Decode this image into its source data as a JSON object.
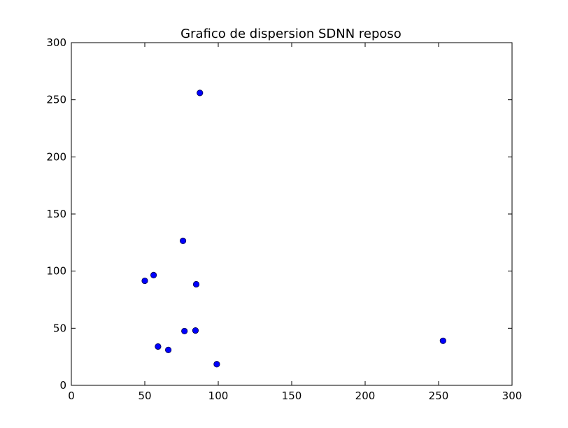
{
  "chart_data": {
    "type": "scatter",
    "title": "Grafico de dispersion SDNN reposo",
    "xlabel": "",
    "ylabel": "",
    "xlim": [
      0,
      300
    ],
    "ylim": [
      0,
      300
    ],
    "x_ticks": [
      0,
      50,
      100,
      150,
      200,
      250,
      300
    ],
    "y_ticks": [
      0,
      50,
      100,
      150,
      200,
      250,
      300
    ],
    "grid": false,
    "marker_color": "#0000ff",
    "points": [
      {
        "x": 87.5,
        "y": 256
      },
      {
        "x": 76,
        "y": 126.5
      },
      {
        "x": 56,
        "y": 96.5
      },
      {
        "x": 50,
        "y": 91.5
      },
      {
        "x": 85,
        "y": 88.5
      },
      {
        "x": 77,
        "y": 47.5
      },
      {
        "x": 84.5,
        "y": 48
      },
      {
        "x": 59,
        "y": 34
      },
      {
        "x": 66,
        "y": 31
      },
      {
        "x": 99,
        "y": 18.5
      },
      {
        "x": 253,
        "y": 39
      }
    ]
  }
}
